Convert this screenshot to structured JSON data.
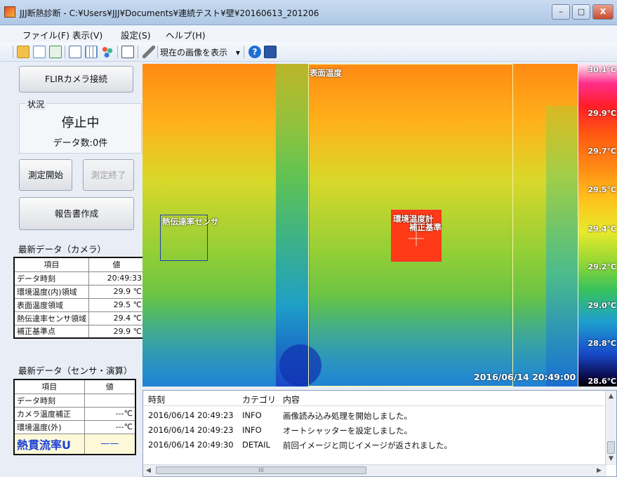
{
  "window": {
    "title": "JJJ断熱診断 - C:¥Users¥JJJ¥Documents¥連続テスト¥壁¥20160613_201206",
    "btn_min": "–",
    "btn_max": "□",
    "btn_close": "X"
  },
  "menu": [
    "ファイル(F)",
    "表示(V)",
    "設定(S)",
    "ヘルプ(H)"
  ],
  "toolbar": {
    "icons": [
      "folder-open-icon",
      "document-icon",
      "export-icon",
      "image-list-icon",
      "grid-icon",
      "palette-icon",
      "frame-icon",
      "wrench-icon"
    ],
    "view_label": "現在の画像を表示",
    "dropdown_arrow": "▾",
    "help_icon": "?",
    "colors": {
      "folder": "#f2c14b",
      "document": "#5b8fd6",
      "export": "#3c9a4a",
      "help": "#1f6fd1",
      "book": "#2b56a6"
    }
  },
  "left": {
    "connect_button": "FLIRカメラ接続",
    "status_legend": "状況",
    "status_value": "停止中",
    "data_count": "データ数:0件",
    "start_button": "測定開始",
    "stop_button": "測定終了",
    "report_button": "報告書作成",
    "camera_section": "最新データ（カメラ）",
    "camera_table": {
      "headers": [
        "項目",
        "値"
      ],
      "rows": [
        {
          "item": "データ時刻",
          "value": "20:49:33"
        },
        {
          "item": "環境温度(内)領域",
          "value": "29.9 ℃"
        },
        {
          "item": "表面温度領域",
          "value": "29.5 ℃"
        },
        {
          "item": "熱伝達率センサ領域",
          "value": "29.4 ℃"
        },
        {
          "item": "補正基準点",
          "value": "29.9 ℃"
        }
      ]
    },
    "sensor_section": "最新データ（センサ・演算）",
    "sensor_table": {
      "headers": [
        "項目",
        "値"
      ],
      "rows": [
        {
          "item": "データ時刻",
          "value": ""
        },
        {
          "item": "カメラ温度補正",
          "value": "---℃"
        },
        {
          "item": "環境温度(外)",
          "value": "---℃"
        }
      ],
      "u_label": "熱貫流率U",
      "u_value": "——",
      "u_color": "#1d3fd8"
    }
  },
  "thermal": {
    "labels": {
      "surface": "表面温度",
      "sensor": "熱伝達率センサ",
      "ambient": "環境温度計",
      "reference": "補正基準"
    },
    "timestamp": "2016/06/14 20:49:00",
    "colorbar": [
      "30.1℃",
      "29.9℃",
      "29.7℃",
      "29.5℃",
      "29.4℃",
      "29.2℃",
      "29.0℃",
      "28.8℃",
      "28.6℃"
    ]
  },
  "log": {
    "headers": [
      "時刻",
      "カテゴリ",
      "内容"
    ],
    "rows": [
      {
        "time": "2016/06/14 20:49:23",
        "category": "INFO",
        "message": "画像読み込み処理を開始しました。"
      },
      {
        "time": "2016/06/14 20:49:23",
        "category": "INFO",
        "message": "オートシャッターを設定しました。"
      },
      {
        "time": "2016/06/14 20:49:30",
        "category": "DETAIL",
        "message": "前回イメージと同じイメージが返されました。"
      }
    ],
    "hscroll_grip": "III"
  }
}
